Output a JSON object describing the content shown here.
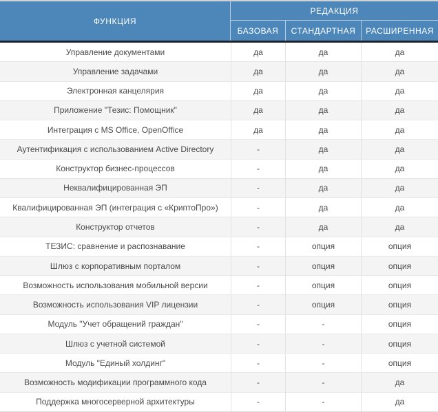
{
  "table": {
    "header": {
      "function_label": "ФУНКЦИЯ",
      "edition_label": "РЕДАКЦИЯ",
      "editions": [
        "БАЗОВАЯ",
        "СТАНДАРТНАЯ",
        "РАСШИРЕННАЯ"
      ]
    },
    "rows": [
      {
        "feature": "Управление документами",
        "values": [
          "да",
          "да",
          "да"
        ]
      },
      {
        "feature": "Управление задачами",
        "values": [
          "да",
          "да",
          "да"
        ]
      },
      {
        "feature": "Электронная канцелярия",
        "values": [
          "да",
          "да",
          "да"
        ]
      },
      {
        "feature": "Приложение \"Тезис: Помощник\"",
        "values": [
          "да",
          "да",
          "да"
        ]
      },
      {
        "feature": "Интеграция с MS Office, OpenOffice",
        "values": [
          "да",
          "да",
          "да"
        ]
      },
      {
        "feature": "Аутентификация с использованием Active Directory",
        "values": [
          "-",
          "да",
          "да"
        ]
      },
      {
        "feature": "Конструктор бизнес-процессов",
        "values": [
          "-",
          "да",
          "да"
        ]
      },
      {
        "feature": "Неквалифицированная ЭП",
        "values": [
          "-",
          "да",
          "да"
        ]
      },
      {
        "feature": "Квалифицированная ЭП (интеграция с «КриптоПро»)",
        "values": [
          "-",
          "да",
          "да"
        ]
      },
      {
        "feature": "Конструктор отчетов",
        "values": [
          "-",
          "да",
          "да"
        ]
      },
      {
        "feature": "ТЕЗИС: сравнение и распознавание",
        "values": [
          "-",
          "опция",
          "опция"
        ]
      },
      {
        "feature": "Шлюз с корпоративным порталом",
        "values": [
          "-",
          "опция",
          "опция"
        ]
      },
      {
        "feature": "Возможность использования мобильной версии",
        "values": [
          "-",
          "опция",
          "опция"
        ]
      },
      {
        "feature": "Возможность использования VIP лицензии",
        "values": [
          "-",
          "опция",
          "опция"
        ]
      },
      {
        "feature": "Модуль \"Учет обращений граждан\"",
        "values": [
          "-",
          "-",
          "опция"
        ]
      },
      {
        "feature": "Шлюз с учетной системой",
        "values": [
          "-",
          "-",
          "опция"
        ]
      },
      {
        "feature": "Модуль \"Единый холдинг\"",
        "values": [
          "-",
          "-",
          "опция"
        ]
      },
      {
        "feature": "Возможность модификации программного кода",
        "values": [
          "-",
          "-",
          "да"
        ]
      },
      {
        "feature": "Поддержка многосерверной архитектуры",
        "values": [
          "-",
          "-",
          "да"
        ]
      }
    ]
  },
  "colors": {
    "header_bg": "#4d87ba",
    "header_text": "#ffffff",
    "header_divider": "#b8cde0",
    "dark_separator": "#1e222a",
    "row_bg": "#ffffff",
    "row_alt_bg": "#f4f4f4",
    "cell_border": "#e2e2e2",
    "body_text": "#4a4a4a"
  }
}
